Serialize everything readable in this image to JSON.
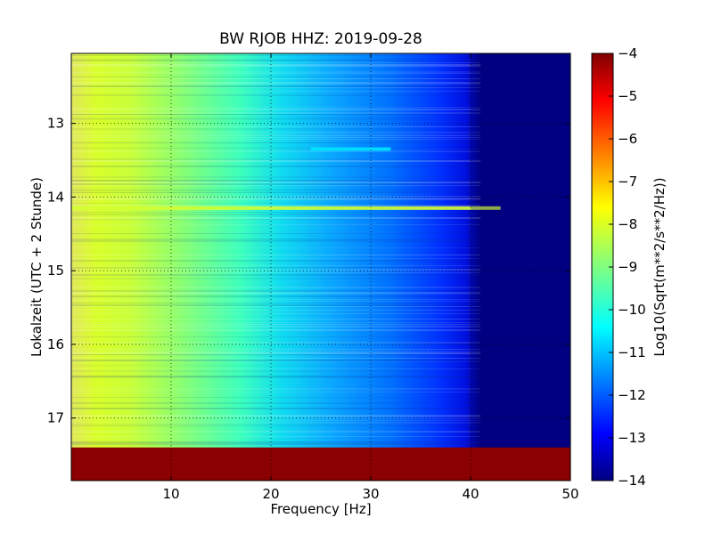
{
  "chart_data": {
    "type": "heatmap",
    "title": "BW RJOB HHZ: 2019-09-28",
    "xlabel": "Frequency [Hz]",
    "ylabel": "Lokalzeit (UTC + 2 Stunde)",
    "xlim": [
      0,
      50
    ],
    "ylim": [
      17.85,
      12.05
    ],
    "x_ticks": [
      10,
      20,
      30,
      40,
      50
    ],
    "y_ticks": [
      13,
      14,
      15,
      16,
      17
    ],
    "grid": true,
    "colormap": "jet",
    "colorbar": {
      "label": "Log10(Sqrt(m**2/s**2/Hz))",
      "range": [
        -14,
        -4
      ],
      "ticks": [
        -4,
        -5,
        -6,
        -7,
        -8,
        -9,
        -10,
        -11,
        -12,
        -13,
        -14
      ]
    },
    "data_end_time": 17.4,
    "features": [
      {
        "time": 14.15,
        "freq_range": [
          0,
          43
        ],
        "level": -8.2
      },
      {
        "time": 13.35,
        "freq_range": [
          24,
          32
        ],
        "level": -10.5
      },
      {
        "freq_range": [
          40,
          50
        ],
        "level": -14
      }
    ]
  }
}
